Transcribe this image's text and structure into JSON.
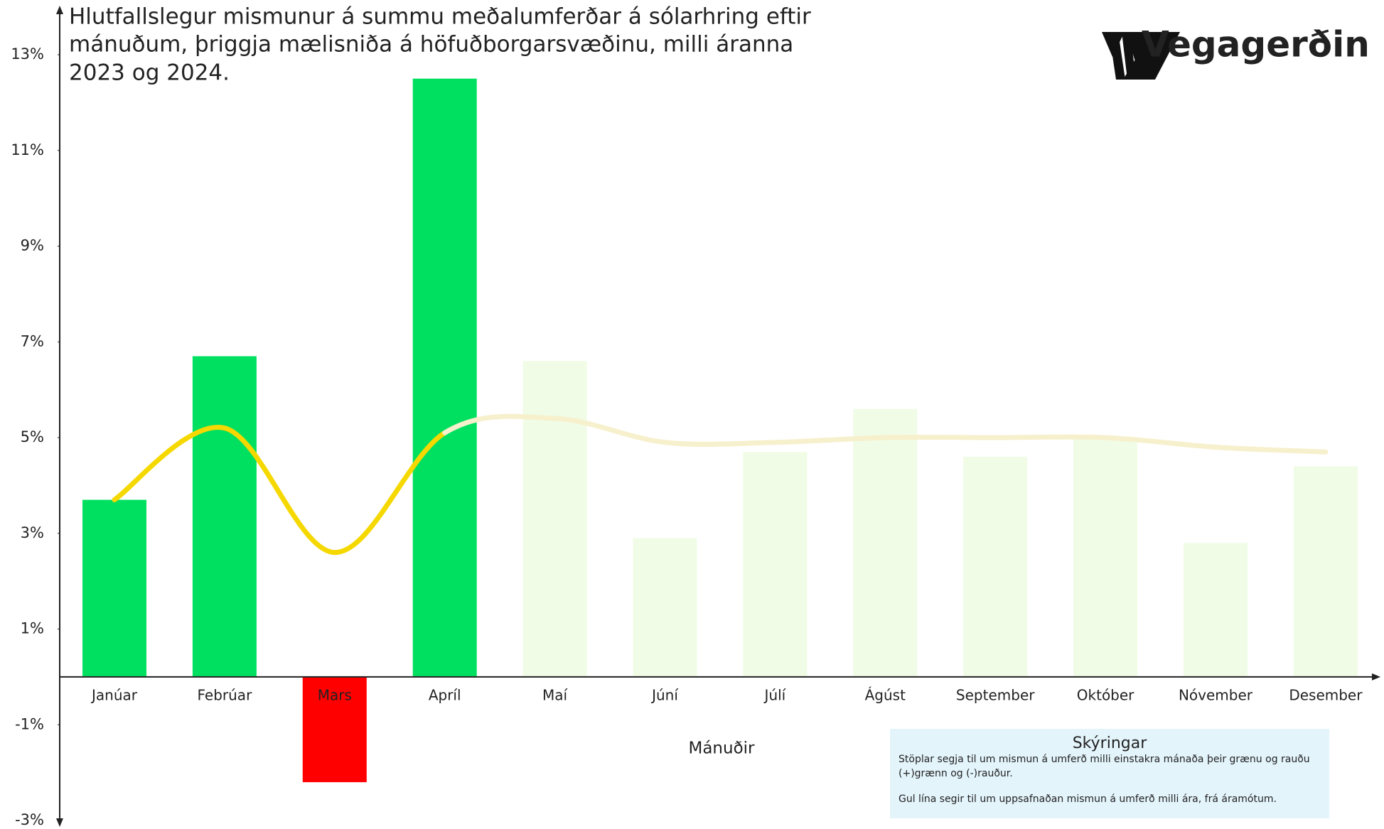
{
  "chart_data": {
    "type": "bar",
    "title_lines": [
      "Hlutfallslegur mismunur á summu meðalumferðar á sólarhring eftir",
      "mánuðum, þriggja mælisniða á höfuðborgarsvæðinu, milli áranna",
      "2023 og 2024."
    ],
    "brand": "Vegagerðin",
    "x_label": "Mánuðir",
    "categories": [
      "Janúar",
      "Febrúar",
      "Mars",
      "Apríl",
      "Maí",
      "Júní",
      "Júlí",
      "Ágúst",
      "September",
      "Október",
      "Nóvember",
      "Desember"
    ],
    "values": [
      3.7,
      6.7,
      -2.2,
      12.5,
      6.6,
      2.9,
      4.7,
      5.6,
      4.6,
      5.0,
      2.8,
      4.4
    ],
    "colors": [
      "#00e060",
      "#00e060",
      "#ff0000",
      "#00e060",
      "#f0fce6",
      "#f0fce6",
      "#f0fce6",
      "#f0fce6",
      "#f0fce6",
      "#f0fce6",
      "#f0fce6",
      "#f0fce6"
    ],
    "line": {
      "values": [
        3.7,
        5.2,
        2.6,
        5.1,
        5.4,
        4.9,
        4.9,
        5.0,
        5.0,
        5.0,
        4.8,
        4.7
      ],
      "colors": [
        "#f5d800",
        "#f5d800",
        "#f5d800",
        "#f5d800",
        "#f7f0cc",
        "#f7f0cc",
        "#f7f0cc",
        "#f7f0cc",
        "#f7f0cc",
        "#f7f0cc",
        "#f7f0cc",
        "#f7f0cc"
      ]
    },
    "ylim": [
      -3,
      13
    ],
    "yticks": [
      {
        "value": 13,
        "label": "13%"
      },
      {
        "value": 11,
        "label": "11%"
      },
      {
        "value": 9,
        "label": "9%"
      },
      {
        "value": 7,
        "label": "7%"
      },
      {
        "value": 5,
        "label": "5%"
      },
      {
        "value": 3,
        "label": "3%"
      },
      {
        "value": 1,
        "label": "1%"
      },
      {
        "value": -1,
        "label": "-1%"
      },
      {
        "value": -3,
        "label": "-3%"
      }
    ],
    "legend_box": {
      "title": "Skýringar",
      "lines": [
        "Stöplar segja til um mismun á umferð milli einstakra mánaða  þeir grænu og rauðu",
        "(+)grænn og (-)rauður.",
        "Gul lína segir til um uppsafnaðan mismun á umferð milli ára, frá áramótum."
      ]
    }
  }
}
